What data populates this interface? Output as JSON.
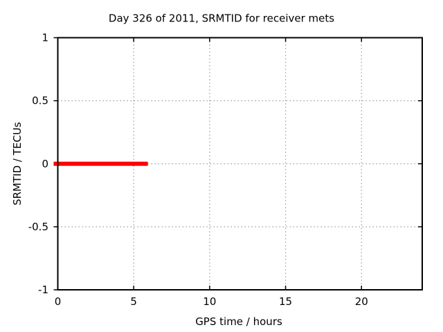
{
  "page": {
    "background": "#ffffff",
    "text_color": "#000000"
  },
  "chart_data": {
    "type": "line",
    "title": "Day 326 of 2011, SRMTID for receiver mets",
    "xlabel": "GPS time / hours",
    "ylabel": "SRMTID / TECUs",
    "xlim": [
      0,
      24
    ],
    "ylim": [
      -1,
      1
    ],
    "xticks": [
      0,
      5,
      10,
      15,
      20
    ],
    "yticks": [
      -1,
      -0.5,
      0,
      0.5,
      1
    ],
    "grid": true,
    "grid_style": "dotted",
    "grid_color": "#999999",
    "border_color": "#000000",
    "legend_position": "none",
    "series": [
      {
        "name": "SRMTID",
        "color": "#ff0000",
        "linewidth": 6,
        "x": [
          0,
          5.93
        ],
        "y": [
          0,
          0
        ]
      }
    ]
  }
}
